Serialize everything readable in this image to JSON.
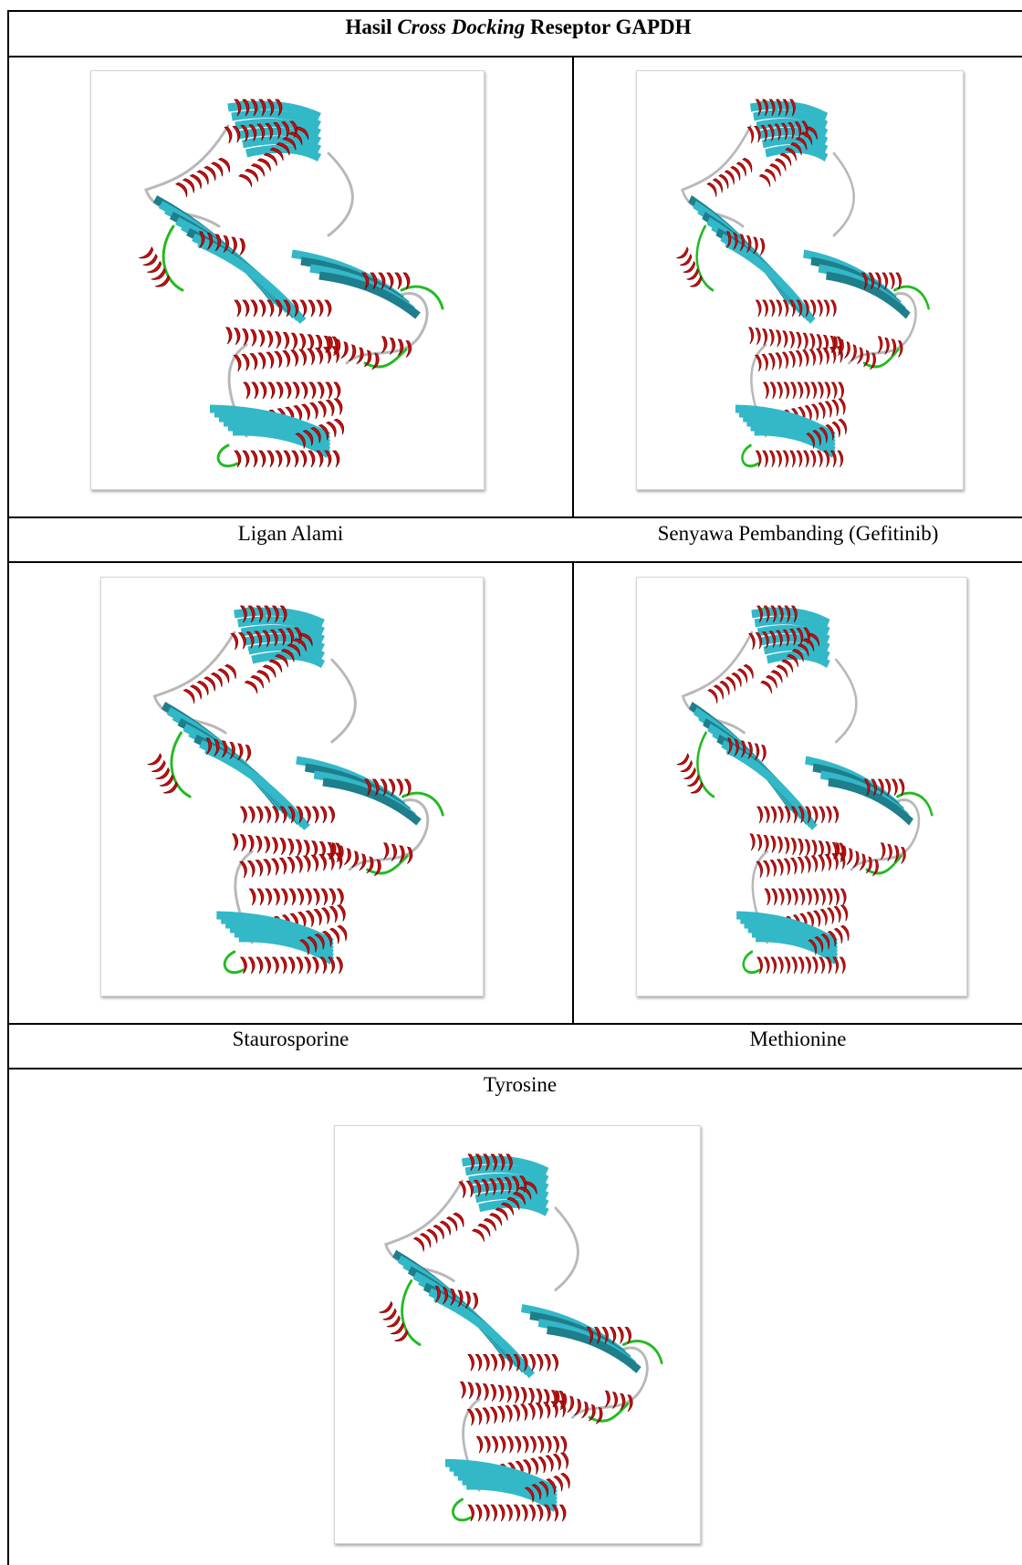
{
  "table": {
    "title_pre": "Hasil ",
    "title_italic": "Cross Docking",
    "title_post": " Reseptor GAPDH"
  },
  "cells": [
    {
      "label": "Ligan Alami"
    },
    {
      "label": "Senyawa Pembanding (Gefitinib)"
    },
    {
      "label": "Staurosporine"
    },
    {
      "label": "Methionine"
    },
    {
      "label": "Tyrosine"
    }
  ],
  "colors": {
    "helix": "#cc1111",
    "sheet": "#33b8c8",
    "sheet_dark": "#1e7e8c",
    "turn": "#22bb22",
    "coil": "#b8b8b8"
  },
  "icons": [
    "protein-structure-render"
  ]
}
